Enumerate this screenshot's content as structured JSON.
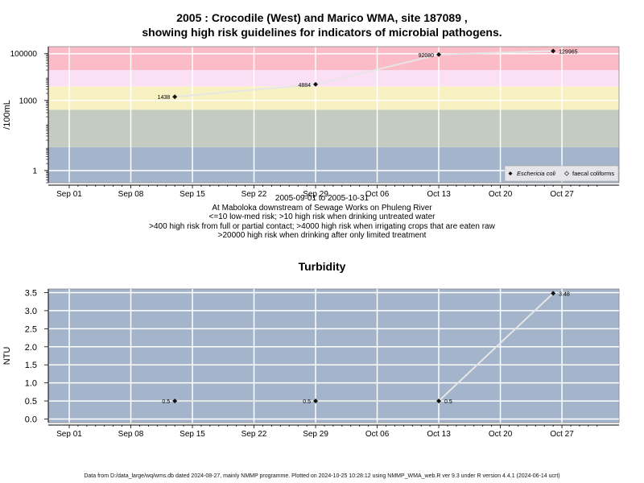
{
  "chart_data": [
    {
      "type": "line",
      "title_line1": "2005 : Crocodile (West) and Marico WMA, site 187089 ,",
      "title_line2": "showing high risk guidelines for indicators of microbial pathogens.",
      "ylabel": "/100mL",
      "yscale": "log",
      "ylim": [
        0.3,
        200000
      ],
      "y_ticks": [
        {
          "v": 1,
          "label": "1"
        },
        {
          "v": 1000,
          "label": "1000"
        },
        {
          "v": 100000,
          "label": "100000"
        }
      ],
      "x_ticks": [
        "Sep 01",
        "Sep 08",
        "Sep 15",
        "Sep 22",
        "Sep 29",
        "Oct 06",
        "Oct 13",
        "Oct 20",
        "Oct 27"
      ],
      "bands": [
        {
          "from": 0.3,
          "to": 10,
          "color": "#a3b4cb"
        },
        {
          "from": 10,
          "to": 400,
          "color": "#c4cbc0"
        },
        {
          "from": 400,
          "to": 4000,
          "color": "#f8f1c2"
        },
        {
          "from": 4000,
          "to": 20000,
          "color": "#fbe0f5"
        },
        {
          "from": 20000,
          "to": 200000,
          "color": "#fbbcc8"
        }
      ],
      "series": [
        {
          "name": "Eschericia coli",
          "x": [
            "2005-09-13",
            "2005-09-29",
            "2005-10-13",
            "2005-10-26"
          ],
          "values": [
            1438,
            4884,
            92080,
            129965
          ],
          "labels": [
            "1438",
            "4884",
            "92080",
            "129965"
          ]
        }
      ],
      "legend": {
        "position": "bottom-right",
        "entries": [
          "Eschericia coli",
          "faecal coliforms"
        ]
      },
      "caption": [
        "2005-09-01 to 2005-10-31",
        "At Maboloka downstream of Sewage Works on Phuleng River",
        "<=10 low-med risk; >10 high risk when drinking untreated water",
        ">400 high risk from full or partial contact; >4000 high risk when irrigating crops that are eaten raw",
        ">20000 high risk when drinking after only limited treatment"
      ]
    },
    {
      "type": "line",
      "title": "Turbidity",
      "ylabel": "NTU",
      "ylim": [
        -0.1,
        3.6
      ],
      "y_ticks": [
        "0.0",
        "0.5",
        "1.0",
        "1.5",
        "2.0",
        "2.5",
        "3.0",
        "3.5"
      ],
      "x_ticks": [
        "Sep 01",
        "Sep 08",
        "Sep 15",
        "Sep 22",
        "Sep 29",
        "Oct 06",
        "Oct 13",
        "Oct 20",
        "Oct 27"
      ],
      "background": "#a3b4cb",
      "series": [
        {
          "x": [
            "2005-09-13",
            "2005-09-29",
            "2005-10-13",
            "2005-10-26"
          ],
          "values": [
            0.5,
            0.5,
            0.5,
            3.48
          ],
          "labels": [
            "0.5",
            "0.5",
            "0.5",
            "3.48"
          ]
        }
      ]
    }
  ],
  "footer": "Data from D:/data_large/wq/wms.db dated 2024-08-27, mainly NMMP programme. Plotted on 2024-10-25 10:28:12 using NMMP_WMA_web.R ver 9.3 under R version 4.4.1 (2024-06-14 ucrt)"
}
